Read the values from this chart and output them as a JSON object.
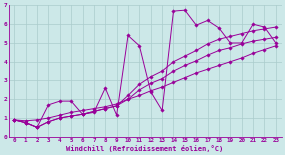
{
  "xlabel": "Windchill (Refroidissement éolien,°C)",
  "bg_color": "#cce8e8",
  "grid_color": "#aacccc",
  "line_color": "#990099",
  "xlim": [
    -0.5,
    23.5
  ],
  "ylim": [
    0,
    7
  ],
  "xticks": [
    0,
    1,
    2,
    3,
    4,
    5,
    6,
    7,
    8,
    9,
    10,
    11,
    12,
    13,
    14,
    15,
    16,
    17,
    18,
    19,
    20,
    21,
    22,
    23
  ],
  "yticks": [
    0,
    1,
    2,
    3,
    4,
    5,
    6,
    7
  ],
  "series": [
    {
      "x": [
        0,
        1,
        2,
        3,
        4,
        5,
        6,
        7,
        8,
        9,
        10,
        11,
        12,
        13,
        14,
        15,
        16,
        17,
        18,
        19,
        20,
        21,
        22,
        23
      ],
      "y": [
        0.9,
        0.75,
        0.5,
        1.7,
        1.9,
        1.9,
        1.2,
        1.3,
        2.6,
        1.15,
        5.4,
        4.85,
        2.4,
        1.4,
        6.7,
        6.75,
        5.95,
        6.2,
        5.8,
        5.0,
        5.0,
        6.0,
        5.85,
        5.0
      ]
    },
    {
      "x": [
        0,
        1,
        2,
        3,
        4,
        5,
        6,
        7,
        8,
        9,
        10,
        11,
        12,
        13,
        14,
        15,
        16,
        17,
        18,
        19,
        20,
        21,
        22,
        23
      ],
      "y": [
        0.9,
        0.85,
        0.9,
        1.0,
        1.15,
        1.3,
        1.4,
        1.5,
        1.6,
        1.75,
        2.0,
        2.2,
        2.45,
        2.65,
        2.9,
        3.15,
        3.4,
        3.6,
        3.8,
        4.0,
        4.2,
        4.45,
        4.65,
        4.85
      ]
    },
    {
      "x": [
        0,
        1,
        2,
        3,
        4,
        5,
        6,
        7,
        8,
        9,
        10,
        11,
        12,
        13,
        14,
        15,
        16,
        17,
        18,
        19,
        20,
        21,
        22,
        23
      ],
      "y": [
        0.9,
        0.75,
        0.5,
        0.8,
        1.0,
        1.1,
        1.2,
        1.35,
        1.5,
        1.65,
        2.0,
        2.5,
        2.85,
        3.1,
        3.5,
        3.8,
        4.05,
        4.35,
        4.6,
        4.75,
        4.95,
        5.1,
        5.2,
        5.3
      ]
    },
    {
      "x": [
        0,
        1,
        2,
        3,
        4,
        5,
        6,
        7,
        8,
        9,
        10,
        11,
        12,
        13,
        14,
        15,
        16,
        17,
        18,
        19,
        20,
        21,
        22,
        23
      ],
      "y": [
        0.9,
        0.75,
        0.5,
        0.8,
        1.0,
        1.1,
        1.2,
        1.35,
        1.5,
        1.65,
        2.2,
        2.8,
        3.2,
        3.5,
        4.0,
        4.3,
        4.6,
        4.95,
        5.2,
        5.35,
        5.5,
        5.65,
        5.75,
        5.85
      ]
    }
  ]
}
